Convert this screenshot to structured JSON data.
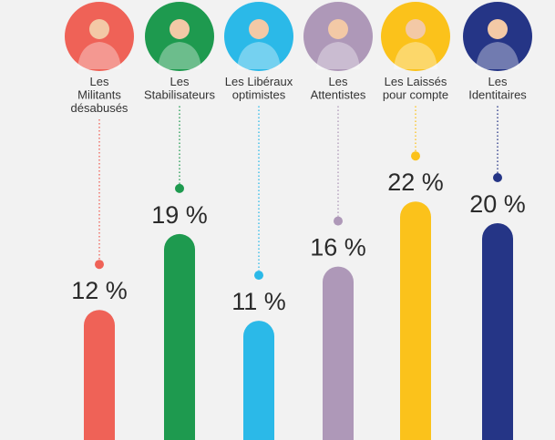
{
  "chart_data": {
    "type": "bar",
    "categories": [
      "Les Militants désabusés",
      "Les Stabilisateurs",
      "Les Libéraux optimistes",
      "Les Attentistes",
      "Les Laissés pour compte",
      "Les Identitaires"
    ],
    "category_label_lines": [
      [
        "Les",
        "Militants",
        "désabusés"
      ],
      [
        "Les",
        "Stabilisateurs"
      ],
      [
        "Les Libéraux",
        "optimistes"
      ],
      [
        "Les",
        "Attentistes"
      ],
      [
        "Les Laissés",
        "pour compte"
      ],
      [
        "Les",
        "Identitaires"
      ]
    ],
    "values": [
      12,
      19,
      11,
      16,
      22,
      20
    ],
    "value_labels": [
      "12 %",
      "19 %",
      "11 %",
      "16 %",
      "22 %",
      "20 %"
    ],
    "colors": [
      "#ef6257",
      "#1e9a4f",
      "#2bb9e8",
      "#ae98b8",
      "#fbc21b",
      "#253586"
    ],
    "avatar_bg": [
      "#ef6257",
      "#1e9a4f",
      "#2bb9e8",
      "#ae98b8",
      "#fbc21b",
      "#253586"
    ],
    "icons": [
      "woman-hands-on-face-avatar",
      "woman-shrugging-avatar",
      "man-thumbs-up-avatar",
      "man-shrugging-avatar",
      "woman-arms-crossed-avatar",
      "man-stop-gesture-avatar"
    ],
    "xlabel": "",
    "ylabel": "",
    "grid": false,
    "legend": "none"
  }
}
